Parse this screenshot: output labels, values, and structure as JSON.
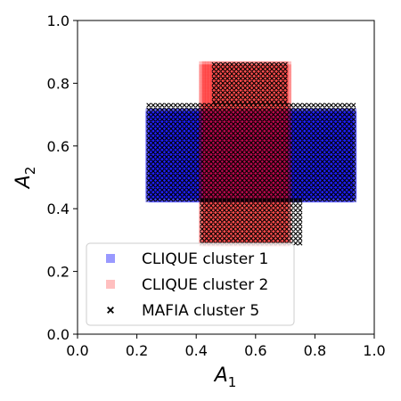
{
  "chart_data": {
    "type": "scatter",
    "xlabel": "A",
    "xlabel_sub": "1",
    "ylabel": "A",
    "ylabel_sub": "2",
    "xlim": [
      0.0,
      1.0
    ],
    "ylim": [
      0.0,
      1.0
    ],
    "xticks": [
      "0.0",
      "0.2",
      "0.4",
      "0.6",
      "0.8",
      "1.0"
    ],
    "yticks": [
      "0.0",
      "0.2",
      "0.4",
      "0.6",
      "0.8",
      "1.0"
    ],
    "grid": false,
    "legend_position": "lower-left",
    "series": [
      {
        "name": "CLIQUE cluster 1",
        "marker": "square",
        "color": "#0000ff",
        "alpha": 0.4,
        "regions": [
          {
            "x": [
              0.24,
              0.93
            ],
            "y": [
              0.43,
              0.71
            ],
            "step": 0.01
          }
        ]
      },
      {
        "name": "CLIQUE cluster 2",
        "marker": "square",
        "color": "#ff0000",
        "alpha": 0.25,
        "regions": [
          {
            "x": [
              0.42,
              0.71
            ],
            "y": [
              0.29,
              0.86
            ],
            "step": 0.01
          }
        ]
      },
      {
        "name": "MAFIA cluster 5",
        "marker": "x",
        "color": "#000000",
        "alpha": 1.0,
        "regions": [
          {
            "x": [
              0.24,
              0.93
            ],
            "y": [
              0.43,
              0.74
            ],
            "step": 0.015
          },
          {
            "x": [
              0.42,
              0.76
            ],
            "y": [
              0.29,
              0.43
            ],
            "step": 0.015
          },
          {
            "x": [
              0.46,
              0.71
            ],
            "y": [
              0.74,
              0.86
            ],
            "step": 0.015
          }
        ]
      }
    ]
  }
}
